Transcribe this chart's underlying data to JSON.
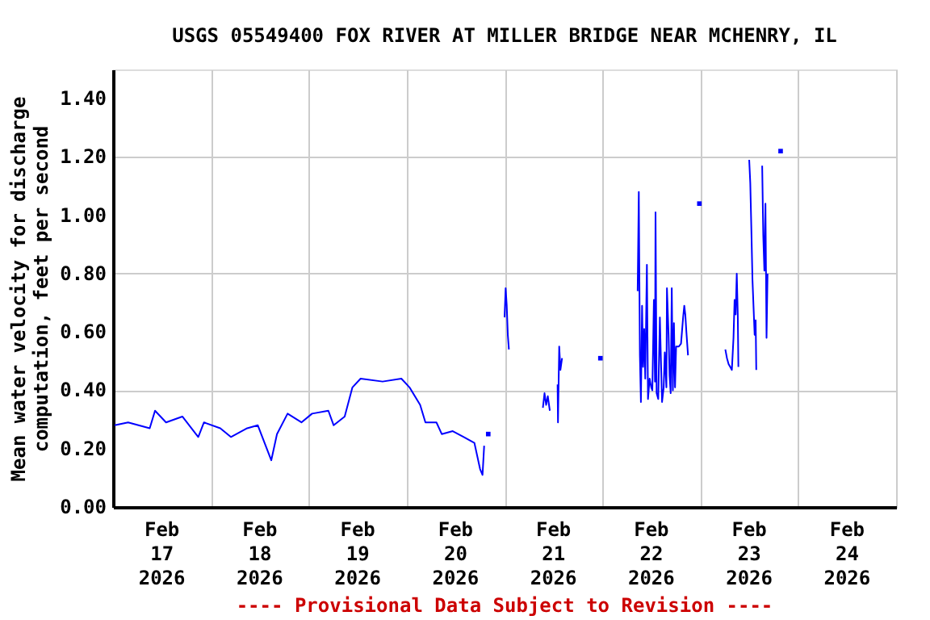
{
  "chart_data": {
    "type": "line",
    "title": "USGS 05549400 FOX RIVER AT MILLER BRIDGE NEAR MCHENRY, IL",
    "ylabel": "Mean water velocity for discharge\ncomputation, feet per second",
    "annotations": [
      "---- Provisional Data Subject to Revision ----"
    ],
    "x": [
      "2026-02-17T00:24",
      "2026-02-17T03:42",
      "2026-02-17T09:00",
      "2026-02-17T10:18",
      "2026-02-17T13:00",
      "2026-02-17T17:00",
      "2026-02-17T20:54",
      "2026-02-17T22:18",
      "2026-02-18T02:18",
      "2026-02-18T04:54",
      "2026-02-18T08:54",
      "2026-02-18T11:30",
      "2026-02-18T14:48",
      "2026-02-18T16:12",
      "2026-02-18T18:48",
      "2026-02-18T22:12",
      "2026-02-19T00:48",
      "2026-02-19T04:48",
      "2026-02-19T06:06",
      "2026-02-19T08:48",
      "2026-02-19T10:42",
      "2026-02-19T12:42",
      "2026-02-19T18:06",
      "2026-02-19T22:42",
      "2026-02-20T00:42",
      "2026-02-20T03:18",
      "2026-02-20T04:36",
      "2026-02-20T07:18",
      "2026-02-20T08:36",
      "2026-02-20T11:18",
      "2026-02-20T14:00",
      "2026-02-20T16:36",
      "2026-02-20T18:00",
      "2026-02-20T18:36",
      "2026-02-20T19:00",
      "2026-02-20T19:30",
      "2026-02-20T20:00",
      "2026-02-20T22:00",
      "2026-02-21T00:00",
      "2026-02-21T00:16",
      "2026-02-21T00:32",
      "2026-02-21T00:48",
      "2026-02-21T01:04",
      "2026-02-21T05:00",
      "2026-02-21T09:24",
      "2026-02-21T09:48",
      "2026-02-21T10:12",
      "2026-02-21T10:36",
      "2026-02-21T11:06",
      "2026-02-21T12:00",
      "2026-02-21T13:00",
      "2026-02-21T13:06",
      "2026-02-21T13:24",
      "2026-02-21T13:42",
      "2026-02-21T14:06",
      "2026-02-21T18:00",
      "2026-02-21T23:30",
      "2026-02-22T04:00",
      "2026-02-22T08:38",
      "2026-02-22T08:55",
      "2026-02-22T09:11",
      "2026-02-22T09:26",
      "2026-02-22T09:43",
      "2026-02-22T09:58",
      "2026-02-22T10:14",
      "2026-02-22T10:30",
      "2026-02-22T10:54",
      "2026-02-22T11:10",
      "2026-02-22T11:34",
      "2026-02-22T11:58",
      "2026-02-22T12:14",
      "2026-02-22T12:37",
      "2026-02-22T12:53",
      "2026-02-22T13:01",
      "2026-02-22T13:17",
      "2026-02-22T13:41",
      "2026-02-22T14:05",
      "2026-02-22T14:21",
      "2026-02-22T14:37",
      "2026-02-22T15:01",
      "2026-02-22T15:17",
      "2026-02-22T15:41",
      "2026-02-22T15:49",
      "2026-02-22T16:13",
      "2026-02-22T16:28",
      "2026-02-22T16:44",
      "2026-02-22T17:00",
      "2026-02-22T17:16",
      "2026-02-22T17:32",
      "2026-02-22T17:48",
      "2026-02-22T18:04",
      "2026-02-22T18:44",
      "2026-02-22T19:16",
      "2026-02-22T19:47",
      "2026-02-22T20:04",
      "2026-02-22T20:19",
      "2026-02-22T20:35",
      "2026-02-22T20:59",
      "2026-02-22T22:00",
      "2026-02-22T23:46",
      "2026-02-23T03:00",
      "2026-02-23T06:08",
      "2026-02-23T06:32",
      "2026-02-23T06:56",
      "2026-02-23T07:20",
      "2026-02-23T07:44",
      "2026-02-23T08:08",
      "2026-02-23T08:24",
      "2026-02-23T08:40",
      "2026-02-23T08:56",
      "2026-02-23T09:11",
      "2026-02-23T09:20",
      "2026-02-23T10:30",
      "2026-02-23T11:59",
      "2026-02-23T12:15",
      "2026-02-23T12:31",
      "2026-02-23T12:47",
      "2026-02-23T13:19",
      "2026-02-23T13:34",
      "2026-02-23T13:43",
      "2026-02-23T14:30",
      "2026-02-23T15:10",
      "2026-02-23T15:26",
      "2026-02-23T15:42",
      "2026-02-23T15:58",
      "2026-02-23T16:14",
      "2026-02-23T16:29",
      "2026-02-23T18:00",
      "2026-02-23T19:41"
    ],
    "series": [
      {
        "color": "#0000ff",
        "values": [
          0.28,
          0.29,
          0.27,
          0.33,
          0.29,
          0.31,
          0.24,
          0.29,
          0.27,
          0.24,
          0.27,
          0.28,
          0.16,
          0.25,
          0.32,
          0.29,
          0.32,
          0.33,
          0.28,
          0.31,
          0.41,
          0.44,
          0.43,
          0.44,
          0.41,
          0.35,
          0.29,
          0.29,
          0.25,
          0.26,
          0.24,
          0.22,
          0.13,
          0.11,
          0.21,
          null,
          0.25,
          null,
          0.65,
          0.75,
          0.69,
          0.59,
          0.54,
          null,
          0.34,
          0.39,
          0.35,
          0.38,
          0.33,
          null,
          0.42,
          0.29,
          0.55,
          0.47,
          0.51,
          null,
          0.51,
          null,
          0.74,
          1.08,
          0.52,
          0.36,
          0.69,
          0.48,
          0.61,
          0.44,
          0.83,
          0.37,
          0.44,
          0.41,
          0.4,
          0.71,
          0.43,
          1.01,
          0.39,
          0.37,
          0.65,
          0.5,
          0.36,
          0.41,
          0.53,
          0.41,
          0.75,
          0.59,
          0.45,
          0.39,
          0.75,
          0.4,
          0.63,
          0.41,
          0.55,
          0.55,
          0.56,
          0.65,
          0.69,
          0.66,
          0.6,
          0.52,
          null,
          1.04,
          null,
          0.54,
          0.51,
          0.49,
          0.48,
          0.47,
          0.58,
          0.71,
          0.66,
          0.8,
          0.66,
          0.48,
          null,
          1.19,
          1.11,
          0.95,
          0.78,
          0.59,
          0.64,
          0.47,
          null,
          1.17,
          0.93,
          0.81,
          1.04,
          0.58,
          0.8,
          null,
          1.22
        ]
      }
    ],
    "xlim": [
      "2026-02-17T00:00",
      "2026-02-25T00:00"
    ],
    "xticks": [
      {
        "value": "2026-02-17T00:00",
        "label": null
      },
      {
        "value": "2026-02-17T12:00",
        "label": "Feb 17 2026"
      },
      {
        "value": "2026-02-18T00:00",
        "label": null
      },
      {
        "value": "2026-02-18T12:00",
        "label": "Feb 18 2026"
      },
      {
        "value": "2026-02-19T00:00",
        "label": null
      },
      {
        "value": "2026-02-19T12:00",
        "label": "Feb 19 2026"
      },
      {
        "value": "2026-02-20T00:00",
        "label": null
      },
      {
        "value": "2026-02-20T12:00",
        "label": "Feb 20 2026"
      },
      {
        "value": "2026-02-21T00:00",
        "label": null
      },
      {
        "value": "2026-02-21T12:00",
        "label": "Feb 21 2026"
      },
      {
        "value": "2026-02-22T00:00",
        "label": null
      },
      {
        "value": "2026-02-22T12:00",
        "label": "Feb 22 2026"
      },
      {
        "value": "2026-02-23T00:00",
        "label": null
      },
      {
        "value": "2026-02-23T12:00",
        "label": "Feb 23 2026"
      },
      {
        "value": "2026-02-24T00:00",
        "label": null
      },
      {
        "value": "2026-02-24T12:00",
        "label": "Feb 24 2026"
      },
      {
        "value": "2026-02-25T00:00",
        "label": null
      }
    ],
    "ylim": [
      0,
      1.5
    ],
    "yticks": [
      {
        "value": 0,
        "label": "0.00"
      },
      {
        "value": 0.2,
        "label": "0.20"
      },
      {
        "value": 0.4,
        "label": "0.40"
      },
      {
        "value": 0.6,
        "label": "0.60"
      },
      {
        "value": 0.8,
        "label": "0.80"
      },
      {
        "value": 1.0,
        "label": "1.00"
      },
      {
        "value": 1.2,
        "label": "1.20"
      },
      {
        "value": 1.4,
        "label": "1.40"
      }
    ],
    "grid": true,
    "marker": "none",
    "line_style": "solid",
    "legend": false
  }
}
